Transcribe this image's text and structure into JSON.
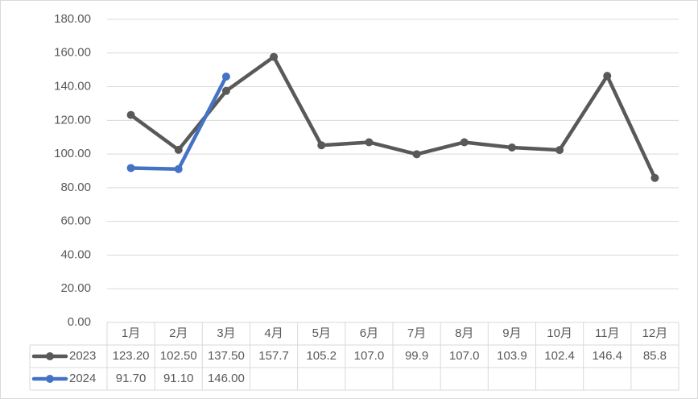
{
  "chart_data": {
    "type": "line",
    "categories": [
      "1月",
      "2月",
      "3月",
      "4月",
      "5月",
      "6月",
      "7月",
      "8月",
      "9月",
      "10月",
      "11月",
      "12月"
    ],
    "series": [
      {
        "name": "2023",
        "color": "#595959",
        "values": [
          123.2,
          102.5,
          137.5,
          157.7,
          105.2,
          107.0,
          99.9,
          107.0,
          103.9,
          102.4,
          146.4,
          85.8
        ],
        "value_labels": [
          "123.20",
          "102.50",
          "137.50",
          "157.7",
          "105.2",
          "107.0",
          "99.9",
          "107.0",
          "103.9",
          "102.4",
          "146.4",
          "85.8"
        ]
      },
      {
        "name": "2024",
        "color": "#4472c4",
        "values": [
          91.7,
          91.1,
          146.0,
          null,
          null,
          null,
          null,
          null,
          null,
          null,
          null,
          null
        ],
        "value_labels": [
          "91.70",
          "91.10",
          "146.00",
          null,
          null,
          null,
          null,
          null,
          null,
          null,
          null,
          null
        ]
      }
    ],
    "ylim": [
      0,
      180
    ],
    "yticks": [
      {
        "value": 0,
        "label": "0.00"
      },
      {
        "value": 20,
        "label": "20.00"
      },
      {
        "value": 40,
        "label": "40.00"
      },
      {
        "value": 60,
        "label": "60.00"
      },
      {
        "value": 80,
        "label": "80.00"
      },
      {
        "value": 100,
        "label": "100.00"
      },
      {
        "value": 120,
        "label": "120.00"
      },
      {
        "value": 140,
        "label": "140.00"
      },
      {
        "value": 160,
        "label": "160.00"
      },
      {
        "value": 180,
        "label": "180.00"
      }
    ],
    "grid": true
  }
}
